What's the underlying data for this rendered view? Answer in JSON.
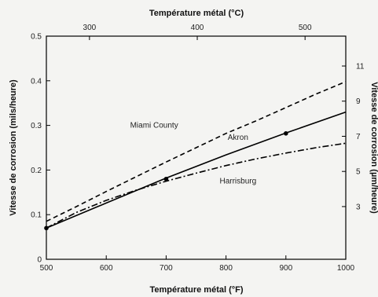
{
  "chart_data": {
    "type": "line",
    "title": "",
    "xlabel_top": "Température métal (°C)",
    "xlabel": "Température métal (°F)",
    "ylabel": "Vitesse de corrosion (mils/heure)",
    "ylabel_right": "Vitesse de corrosion (µm/heure)",
    "xlim": [
      500,
      1000
    ],
    "ylim": [
      0,
      0.5
    ],
    "x_ticks": [
      500,
      600,
      700,
      800,
      900,
      1000
    ],
    "x_tick_labels": [
      "500",
      "600",
      "700",
      "800",
      "900",
      "1000"
    ],
    "y_ticks": [
      0,
      0.1,
      0.2,
      0.3,
      0.4,
      0.5
    ],
    "y_tick_labels": [
      "0",
      "0.1",
      "0.2",
      "0.3",
      "0.4",
      "0.5"
    ],
    "x_top_ticks": [
      300,
      400,
      500
    ],
    "x_top_tick_labels": [
      "300",
      "400",
      "500"
    ],
    "y_right_ticks": [
      3,
      5,
      7,
      9,
      11
    ],
    "y_right_tick_labels": [
      "3",
      "5",
      "7",
      "9",
      "11"
    ],
    "grid": false,
    "series": [
      {
        "name": "Miami County",
        "style": "dashed",
        "x": [
          500,
          550,
          600,
          650,
          700,
          750,
          800,
          850,
          900,
          950,
          1000
        ],
        "y": [
          0.085,
          0.118,
          0.152,
          0.185,
          0.218,
          0.25,
          0.282,
          0.31,
          0.34,
          0.37,
          0.398
        ]
      },
      {
        "name": "Akron",
        "style": "solid",
        "x": [
          500,
          600,
          700,
          800,
          900,
          1000
        ],
        "y": [
          0.07,
          0.126,
          0.182,
          0.234,
          0.283,
          0.33
        ]
      },
      {
        "name": "Harrisburg",
        "style": "dashdot",
        "x": [
          500,
          550,
          600,
          650,
          700,
          750,
          800,
          850,
          900,
          950,
          1000
        ],
        "y": [
          0.07,
          0.105,
          0.132,
          0.155,
          0.175,
          0.193,
          0.21,
          0.225,
          0.238,
          0.25,
          0.26
        ]
      }
    ],
    "markers": [
      {
        "x": 500,
        "y": 0.07
      },
      {
        "x": 700,
        "y": 0.18
      },
      {
        "x": 900,
        "y": 0.282
      }
    ],
    "annotations": [
      {
        "text": "Miami County",
        "x": 680,
        "y": 0.295
      },
      {
        "text": "Akron",
        "x": 820,
        "y": 0.268
      },
      {
        "text": "Harrisburg",
        "x": 820,
        "y": 0.17
      }
    ]
  }
}
